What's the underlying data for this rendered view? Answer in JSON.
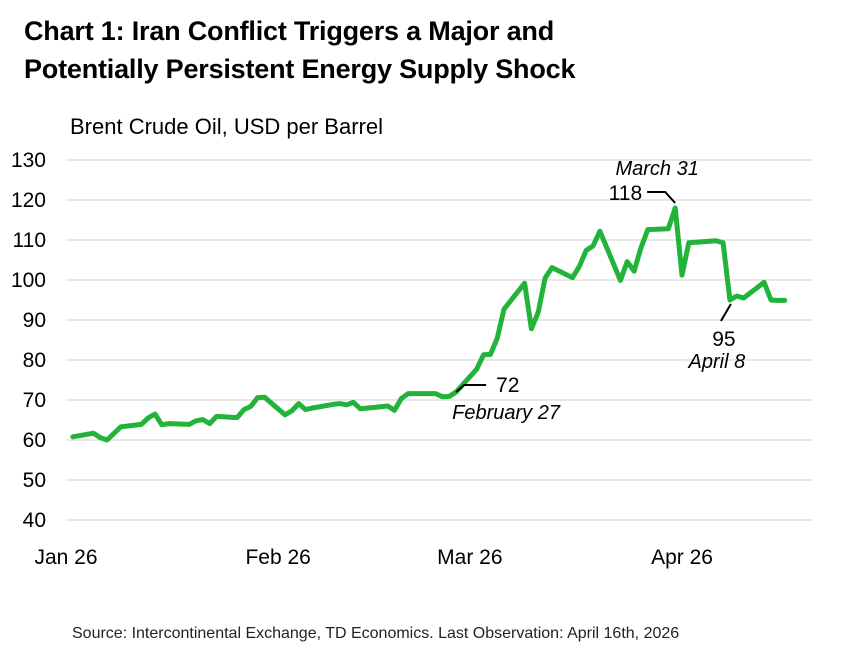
{
  "title_lines": [
    "Chart 1: Iran Conflict Triggers a Major and",
    "Potentially Persistent Energy Supply Shock"
  ],
  "ylabel": "Brent Crude Oil, USD per Barrel",
  "source": "Source: Intercontinental Exchange, TD Economics. Last Observation: April 16th, 2026",
  "colors": {
    "line": "#22b33a",
    "grid": "#d9d9d9",
    "annotation": "#000000"
  },
  "chart_data": {
    "type": "line",
    "title": "Chart 1: Iran Conflict Triggers a Major and Potentially Persistent Energy Supply Shock",
    "ylabel": "Brent Crude Oil, USD per Barrel",
    "xlabel": "",
    "ylim": [
      40,
      130
    ],
    "yticks": [
      40,
      50,
      60,
      70,
      80,
      90,
      100,
      110,
      120,
      130
    ],
    "xlim": [
      "2026-01-02",
      "2026-04-16"
    ],
    "xticks": [
      {
        "date": "2026-01-01",
        "label": "Jan 26"
      },
      {
        "date": "2026-02-01",
        "label": "Feb 26"
      },
      {
        "date": "2026-03-01",
        "label": "Mar 26"
      },
      {
        "date": "2026-04-01",
        "label": "Apr 26"
      }
    ],
    "grid": "horizontal",
    "series": [
      {
        "points": [
          [
            "2026-01-02",
            60.8
          ],
          [
            "2026-01-05",
            61.7
          ],
          [
            "2026-01-06",
            60.6
          ],
          [
            "2026-01-07",
            60.0
          ],
          [
            "2026-01-09",
            63.3
          ],
          [
            "2026-01-12",
            63.9
          ],
          [
            "2026-01-13",
            65.5
          ],
          [
            "2026-01-14",
            66.5
          ],
          [
            "2026-01-15",
            63.8
          ],
          [
            "2026-01-16",
            64.1
          ],
          [
            "2026-01-19",
            63.9
          ],
          [
            "2026-01-20",
            64.8
          ],
          [
            "2026-01-21",
            65.1
          ],
          [
            "2026-01-22",
            64.1
          ],
          [
            "2026-01-23",
            65.9
          ],
          [
            "2026-01-26",
            65.6
          ],
          [
            "2026-01-27",
            67.6
          ],
          [
            "2026-01-28",
            68.4
          ],
          [
            "2026-01-29",
            70.6
          ],
          [
            "2026-01-30",
            70.7
          ],
          [
            "2026-02-02",
            66.3
          ],
          [
            "2026-02-03",
            67.3
          ],
          [
            "2026-02-04",
            69.1
          ],
          [
            "2026-02-05",
            67.6
          ],
          [
            "2026-02-06",
            68.0
          ],
          [
            "2026-02-09",
            68.9
          ],
          [
            "2026-02-10",
            69.1
          ],
          [
            "2026-02-11",
            68.8
          ],
          [
            "2026-02-12",
            69.4
          ],
          [
            "2026-02-13",
            67.8
          ],
          [
            "2026-02-16",
            68.3
          ],
          [
            "2026-02-17",
            68.5
          ],
          [
            "2026-02-18",
            67.4
          ],
          [
            "2026-02-19",
            70.4
          ],
          [
            "2026-02-20",
            71.6
          ],
          [
            "2026-02-23",
            71.6
          ],
          [
            "2026-02-24",
            71.6
          ],
          [
            "2026-02-25",
            70.8
          ],
          [
            "2026-02-26",
            70.9
          ],
          [
            "2026-02-27",
            72.0
          ],
          [
            "2026-03-02",
            77.7
          ],
          [
            "2026-03-03",
            81.3
          ],
          [
            "2026-03-04",
            81.4
          ],
          [
            "2026-03-05",
            85.4
          ],
          [
            "2026-03-06",
            92.7
          ],
          [
            "2026-03-09",
            99.2
          ],
          [
            "2026-03-10",
            87.8
          ],
          [
            "2026-03-11",
            92.0
          ],
          [
            "2026-03-12",
            100.5
          ],
          [
            "2026-03-13",
            103.1
          ],
          [
            "2026-03-16",
            100.6
          ],
          [
            "2026-03-17",
            103.4
          ],
          [
            "2026-03-18",
            107.4
          ],
          [
            "2026-03-19",
            108.5
          ],
          [
            "2026-03-20",
            112.2
          ],
          [
            "2026-03-23",
            99.9
          ],
          [
            "2026-03-24",
            104.6
          ],
          [
            "2026-03-25",
            102.2
          ],
          [
            "2026-03-26",
            108.0
          ],
          [
            "2026-03-27",
            112.6
          ],
          [
            "2026-03-30",
            112.8
          ],
          [
            "2026-03-31",
            118.0
          ],
          [
            "2026-04-01",
            101.2
          ],
          [
            "2026-04-02",
            109.3
          ],
          [
            "2026-04-06",
            109.8
          ],
          [
            "2026-04-07",
            109.3
          ],
          [
            "2026-04-08",
            95.0
          ],
          [
            "2026-04-09",
            96.0
          ],
          [
            "2026-04-10",
            95.5
          ],
          [
            "2026-04-13",
            99.4
          ],
          [
            "2026-04-14",
            95.0
          ],
          [
            "2026-04-15",
            94.9
          ],
          [
            "2026-04-16",
            94.9
          ]
        ]
      }
    ],
    "annotations": [
      {
        "value_label": "72",
        "date_label": "February 27",
        "date": "2026-02-27",
        "value": 72
      },
      {
        "value_label": "118",
        "date_label": "March 31",
        "date": "2026-03-31",
        "value": 118
      },
      {
        "value_label": "95",
        "date_label": "April 8",
        "date": "2026-04-08",
        "value": 95
      }
    ]
  }
}
